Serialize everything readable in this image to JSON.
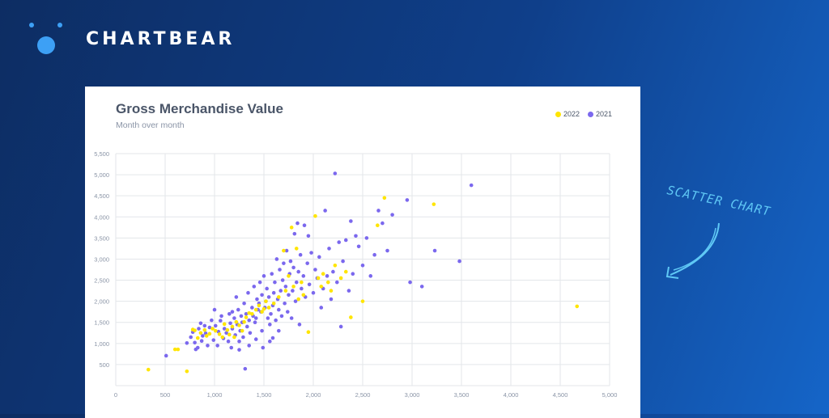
{
  "brand": {
    "name": "CHARTBEAR",
    "accent": "#3da0f5"
  },
  "annotation": {
    "text": "SCATTER CHART",
    "color": "#5fc8f5"
  },
  "chart_data": {
    "type": "scatter",
    "title": "Gross Merchandise Value",
    "subtitle": "Month over month",
    "xlim": [
      0,
      5000
    ],
    "ylim": [
      0,
      5500
    ],
    "x_ticks": [
      0,
      500,
      1000,
      1500,
      2000,
      2500,
      3000,
      3500,
      4000,
      4500,
      5000
    ],
    "x_tick_labels": [
      "0",
      "500",
      "1,000",
      "1,500",
      "2,000",
      "2,500",
      "3,000",
      "3,500",
      "4,000",
      "4,500",
      "5,000"
    ],
    "y_ticks": [
      500,
      1000,
      1500,
      2000,
      2500,
      3000,
      3500,
      4000,
      4500,
      5000,
      5500
    ],
    "y_tick_labels": [
      "500",
      "1,000",
      "1,500",
      "2,000",
      "2,500",
      "3,000",
      "3,500",
      "4,000",
      "4,500",
      "5,000",
      "5,500"
    ],
    "grid": true,
    "legend_position": "top-right",
    "series": [
      {
        "name": "2022",
        "color": "#ffe500",
        "points": [
          [
            330,
            380
          ],
          [
            600,
            860
          ],
          [
            630,
            860
          ],
          [
            720,
            340
          ],
          [
            780,
            1330
          ],
          [
            800,
            1310
          ],
          [
            830,
            1130
          ],
          [
            860,
            1250
          ],
          [
            900,
            1320
          ],
          [
            920,
            1180
          ],
          [
            950,
            1230
          ],
          [
            980,
            1350
          ],
          [
            1010,
            1300
          ],
          [
            1050,
            1220
          ],
          [
            1080,
            1150
          ],
          [
            1100,
            1460
          ],
          [
            1130,
            1320
          ],
          [
            1150,
            1210
          ],
          [
            1180,
            1400
          ],
          [
            1200,
            1150
          ],
          [
            1220,
            1510
          ],
          [
            1250,
            1430
          ],
          [
            1280,
            1300
          ],
          [
            1300,
            1510
          ],
          [
            1320,
            1620
          ],
          [
            1350,
            1720
          ],
          [
            1380,
            1700
          ],
          [
            1420,
            1800
          ],
          [
            1450,
            1900
          ],
          [
            1480,
            1750
          ],
          [
            1500,
            1820
          ],
          [
            1520,
            2000
          ],
          [
            1550,
            1850
          ],
          [
            1600,
            1950
          ],
          [
            1650,
            2100
          ],
          [
            1700,
            3200
          ],
          [
            1720,
            2250
          ],
          [
            1750,
            2600
          ],
          [
            1780,
            3750
          ],
          [
            1800,
            2350
          ],
          [
            1830,
            3250
          ],
          [
            1850,
            2050
          ],
          [
            1880,
            2450
          ],
          [
            1900,
            2150
          ],
          [
            1950,
            1270
          ],
          [
            2020,
            4020
          ],
          [
            2050,
            2550
          ],
          [
            2080,
            2350
          ],
          [
            2100,
            2650
          ],
          [
            2150,
            2450
          ],
          [
            2180,
            2250
          ],
          [
            2220,
            2850
          ],
          [
            2280,
            2550
          ],
          [
            2330,
            2700
          ],
          [
            2380,
            1620
          ],
          [
            2500,
            2000
          ],
          [
            2650,
            3800
          ],
          [
            2720,
            4450
          ],
          [
            3220,
            4300
          ],
          [
            4670,
            1880
          ]
        ]
      },
      {
        "name": "2021",
        "color": "#7b68ee",
        "points": [
          [
            510,
            710
          ],
          [
            720,
            1010
          ],
          [
            760,
            1150
          ],
          [
            780,
            1270
          ],
          [
            800,
            1020
          ],
          [
            810,
            860
          ],
          [
            830,
            900
          ],
          [
            840,
            1350
          ],
          [
            860,
            1480
          ],
          [
            870,
            1060
          ],
          [
            880,
            1180
          ],
          [
            900,
            1420
          ],
          [
            910,
            1240
          ],
          [
            930,
            950
          ],
          [
            950,
            1380
          ],
          [
            970,
            1550
          ],
          [
            990,
            1080
          ],
          [
            1000,
            1800
          ],
          [
            1010,
            1420
          ],
          [
            1030,
            950
          ],
          [
            1040,
            1280
          ],
          [
            1060,
            1540
          ],
          [
            1070,
            1650
          ],
          [
            1090,
            1120
          ],
          [
            1100,
            1350
          ],
          [
            1120,
            1250
          ],
          [
            1140,
            1050
          ],
          [
            1150,
            1700
          ],
          [
            1160,
            1480
          ],
          [
            1170,
            900
          ],
          [
            1180,
            1350
          ],
          [
            1200,
            1600
          ],
          [
            1210,
            1200
          ],
          [
            1220,
            2100
          ],
          [
            1230,
            1450
          ],
          [
            1240,
            1800
          ],
          [
            1250,
            1050
          ],
          [
            1260,
            1300
          ],
          [
            1270,
            1650
          ],
          [
            1280,
            1500
          ],
          [
            1290,
            1150
          ],
          [
            1300,
            1950
          ],
          [
            1310,
            400
          ],
          [
            1320,
            1700
          ],
          [
            1330,
            1400
          ],
          [
            1340,
            2200
          ],
          [
            1350,
            1550
          ],
          [
            1360,
            1250
          ],
          [
            1380,
            1850
          ],
          [
            1390,
            1650
          ],
          [
            1400,
            2350
          ],
          [
            1410,
            1500
          ],
          [
            1420,
            1100
          ],
          [
            1430,
            2050
          ],
          [
            1440,
            1800
          ],
          [
            1450,
            1950
          ],
          [
            1460,
            2450
          ],
          [
            1470,
            1750
          ],
          [
            1480,
            2150
          ],
          [
            1490,
            900
          ],
          [
            1500,
            2600
          ],
          [
            1510,
            1850
          ],
          [
            1520,
            2000
          ],
          [
            1530,
            2300
          ],
          [
            1540,
            1600
          ],
          [
            1550,
            2100
          ],
          [
            1560,
            1450
          ],
          [
            1570,
            1700
          ],
          [
            1580,
            2650
          ],
          [
            1590,
            1900
          ],
          [
            1600,
            2200
          ],
          [
            1610,
            2450
          ],
          [
            1620,
            1550
          ],
          [
            1630,
            3000
          ],
          [
            1640,
            2050
          ],
          [
            1650,
            1800
          ],
          [
            1660,
            2750
          ],
          [
            1670,
            2250
          ],
          [
            1680,
            1650
          ],
          [
            1690,
            2500
          ],
          [
            1700,
            2900
          ],
          [
            1710,
            1950
          ],
          [
            1720,
            2350
          ],
          [
            1730,
            3200
          ],
          [
            1740,
            1750
          ],
          [
            1750,
            2150
          ],
          [
            1760,
            2650
          ],
          [
            1770,
            2950
          ],
          [
            1780,
            1600
          ],
          [
            1790,
            2250
          ],
          [
            1800,
            2800
          ],
          [
            1810,
            3600
          ],
          [
            1820,
            2000
          ],
          [
            1830,
            2450
          ],
          [
            1840,
            3850
          ],
          [
            1850,
            2700
          ],
          [
            1860,
            1450
          ],
          [
            1870,
            3100
          ],
          [
            1880,
            2300
          ],
          [
            1900,
            2600
          ],
          [
            1910,
            3800
          ],
          [
            1920,
            2100
          ],
          [
            1940,
            2900
          ],
          [
            1950,
            3550
          ],
          [
            1960,
            2400
          ],
          [
            1980,
            3150
          ],
          [
            2000,
            2200
          ],
          [
            2020,
            2750
          ],
          [
            2040,
            2550
          ],
          [
            2060,
            3050
          ],
          [
            2080,
            1850
          ],
          [
            2100,
            2300
          ],
          [
            2120,
            4150
          ],
          [
            2140,
            2600
          ],
          [
            2160,
            3250
          ],
          [
            2180,
            2050
          ],
          [
            2200,
            2700
          ],
          [
            2220,
            5030
          ],
          [
            2240,
            2450
          ],
          [
            2260,
            3400
          ],
          [
            2280,
            1400
          ],
          [
            2300,
            2950
          ],
          [
            2330,
            3450
          ],
          [
            2360,
            2250
          ],
          [
            2380,
            3900
          ],
          [
            2400,
            2650
          ],
          [
            2430,
            3550
          ],
          [
            2460,
            3300
          ],
          [
            2500,
            2850
          ],
          [
            2540,
            3500
          ],
          [
            2580,
            2600
          ],
          [
            2620,
            3100
          ],
          [
            2660,
            4150
          ],
          [
            2700,
            3850
          ],
          [
            2750,
            3200
          ],
          [
            2800,
            4050
          ],
          [
            2980,
            2450
          ],
          [
            2950,
            4400
          ],
          [
            3100,
            2350
          ],
          [
            3230,
            3200
          ],
          [
            3480,
            2950
          ],
          [
            3600,
            4750
          ],
          [
            1590,
            1130
          ],
          [
            1650,
            1300
          ],
          [
            1420,
            1600
          ],
          [
            1350,
            950
          ],
          [
            1180,
            1750
          ],
          [
            1480,
            1300
          ],
          [
            1560,
            1050
          ],
          [
            1250,
            850
          ]
        ]
      }
    ]
  }
}
